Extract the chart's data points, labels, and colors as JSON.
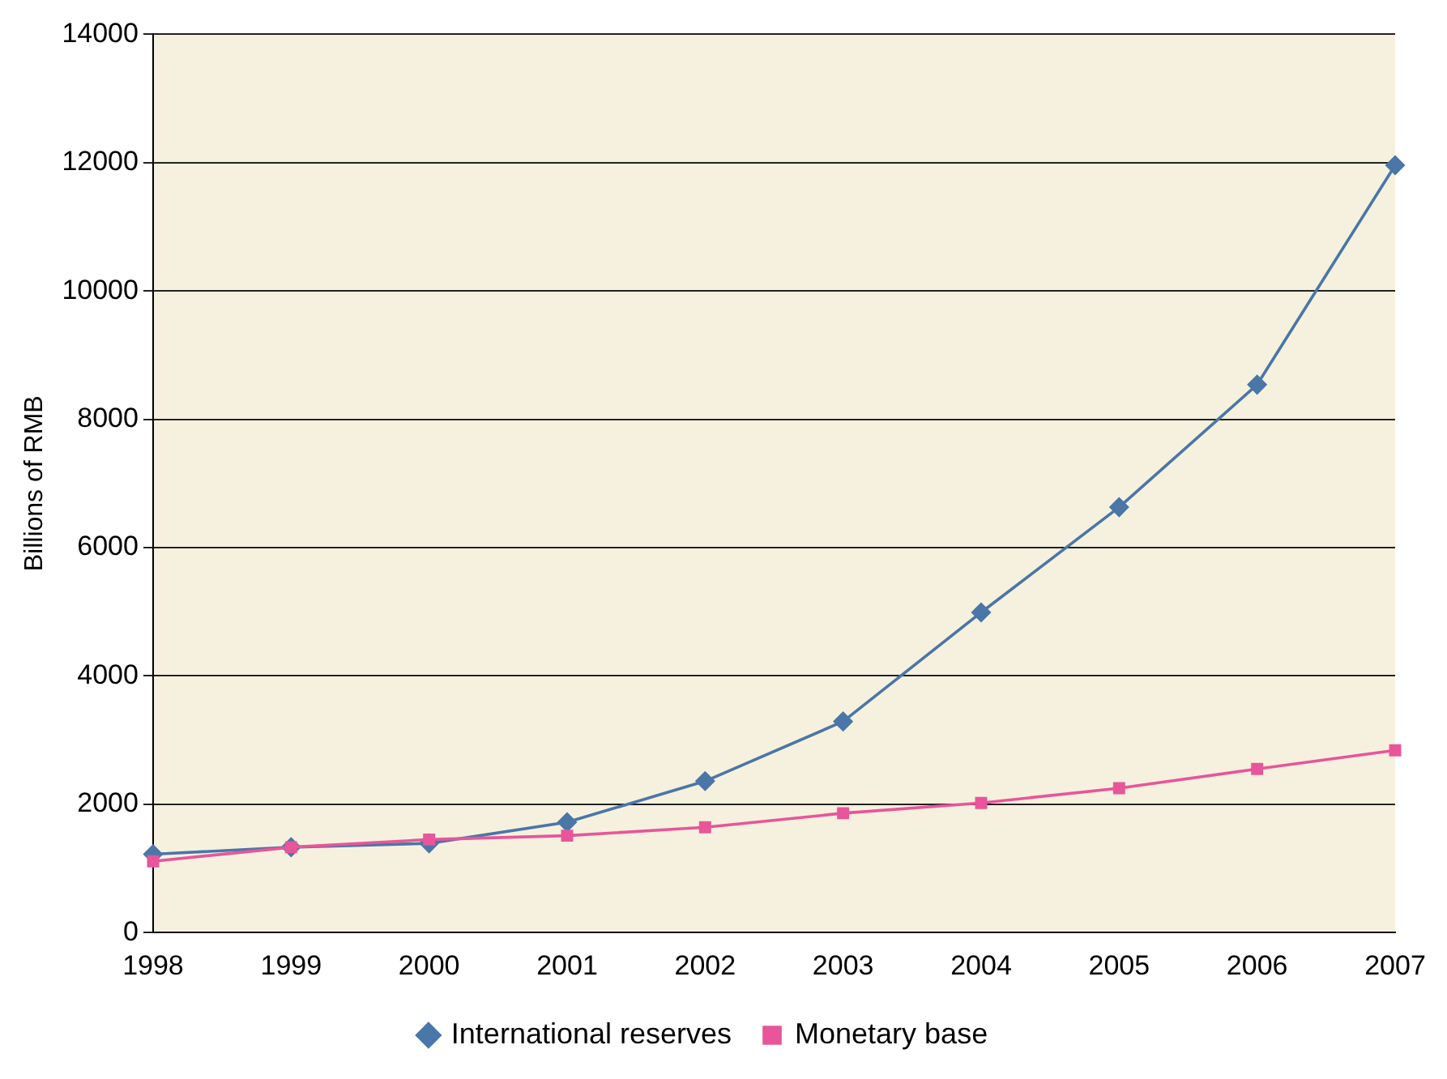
{
  "chart_data": {
    "type": "line",
    "ylabel": "Billions of RMB",
    "categories": [
      "1998",
      "1999",
      "2000",
      "2001",
      "2002",
      "2003",
      "2004",
      "2005",
      "2006",
      "2007"
    ],
    "series": [
      {
        "name": "International reserves",
        "color": "#4a76a8",
        "marker": "diamond",
        "values": [
          1220,
          1330,
          1390,
          1720,
          2360,
          3290,
          4990,
          6630,
          8540,
          11960
        ]
      },
      {
        "name": "Monetary base",
        "color": "#e8559a",
        "marker": "square",
        "values": [
          1110,
          1330,
          1450,
          1510,
          1640,
          1860,
          2020,
          2250,
          2550,
          2840
        ]
      }
    ],
    "ylim": [
      0,
      14000
    ],
    "yticks": [
      0,
      2000,
      4000,
      6000,
      8000,
      10000,
      12000,
      14000
    ],
    "grid": "y",
    "legend": "bottom",
    "line_style": "solid"
  }
}
